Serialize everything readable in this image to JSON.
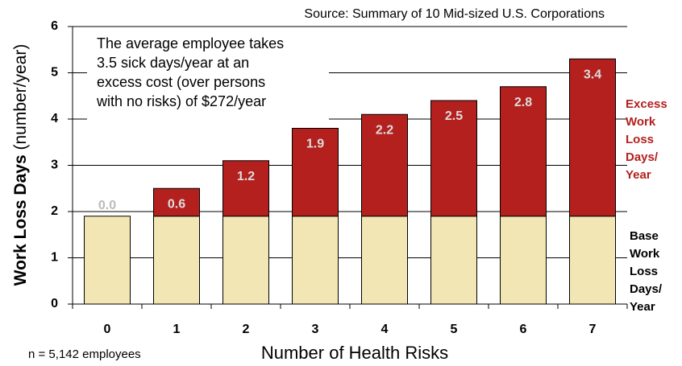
{
  "chart_data": {
    "type": "stacked_bar",
    "source": "Source: Summary of 10 Mid-sized U.S. Corporations",
    "annotation": [
      "The average employee takes",
      "3.5 sick days/year at an",
      "excess cost (over persons",
      "with no risks) of $272/year"
    ],
    "ylabel_bold": "Work Loss Days",
    "ylabel_rest": "(number/year)",
    "xlabel": "Number of Health Risks",
    "note": "n = 5,142 employees",
    "categories": [
      "0",
      "1",
      "2",
      "3",
      "4",
      "5",
      "6",
      "7"
    ],
    "series": [
      {
        "name": "Base Work Loss Days/ Year",
        "color": "#f2e6b4",
        "values": [
          1.9,
          1.9,
          1.9,
          1.9,
          1.9,
          1.9,
          1.9,
          1.9
        ]
      },
      {
        "name": "Excess Work Loss Days/ Year",
        "color": "#b3201e",
        "values": [
          0,
          0.6,
          1.2,
          1.9,
          2.2,
          2.5,
          2.8,
          3.4
        ],
        "value_labels": [
          "0.0",
          "0.6",
          "1.2",
          "1.9",
          "2.2",
          "2.5",
          "2.8",
          "3.4"
        ]
      }
    ],
    "ylim": [
      0,
      6
    ],
    "yticks": [
      0,
      1,
      2,
      3,
      4,
      5,
      6
    ],
    "grid": true
  }
}
